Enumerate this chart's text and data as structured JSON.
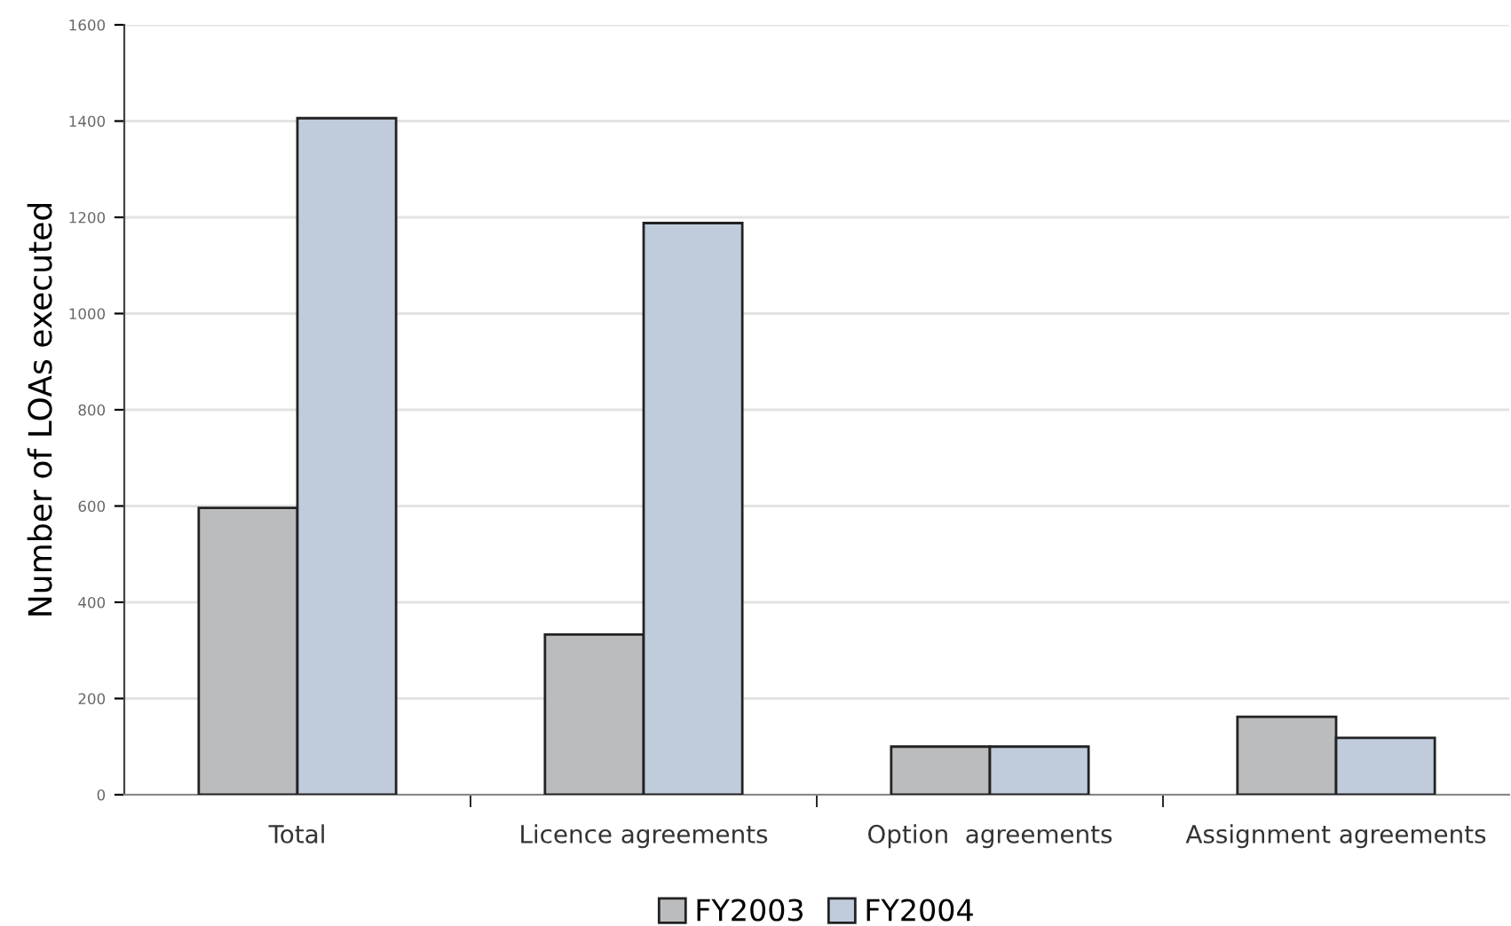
{
  "chart_data": {
    "type": "bar",
    "ylabel": "Number of LOAs executed",
    "categories": [
      "Total",
      "Licence agreements",
      "Option  agreements",
      "Assignment agreements"
    ],
    "series": [
      {
        "name": "FY2003",
        "color": "#bbbcbe",
        "values": [
          596,
          333,
          100,
          162
        ]
      },
      {
        "name": "FY2004",
        "color": "#c0ccdc",
        "values": [
          1406,
          1188,
          100,
          118
        ]
      }
    ],
    "ylim": [
      0,
      1600
    ],
    "yticks": [
      0,
      200,
      400,
      600,
      800,
      1000,
      1200,
      1400,
      1600
    ],
    "grid": "y",
    "legend": "bottom"
  }
}
